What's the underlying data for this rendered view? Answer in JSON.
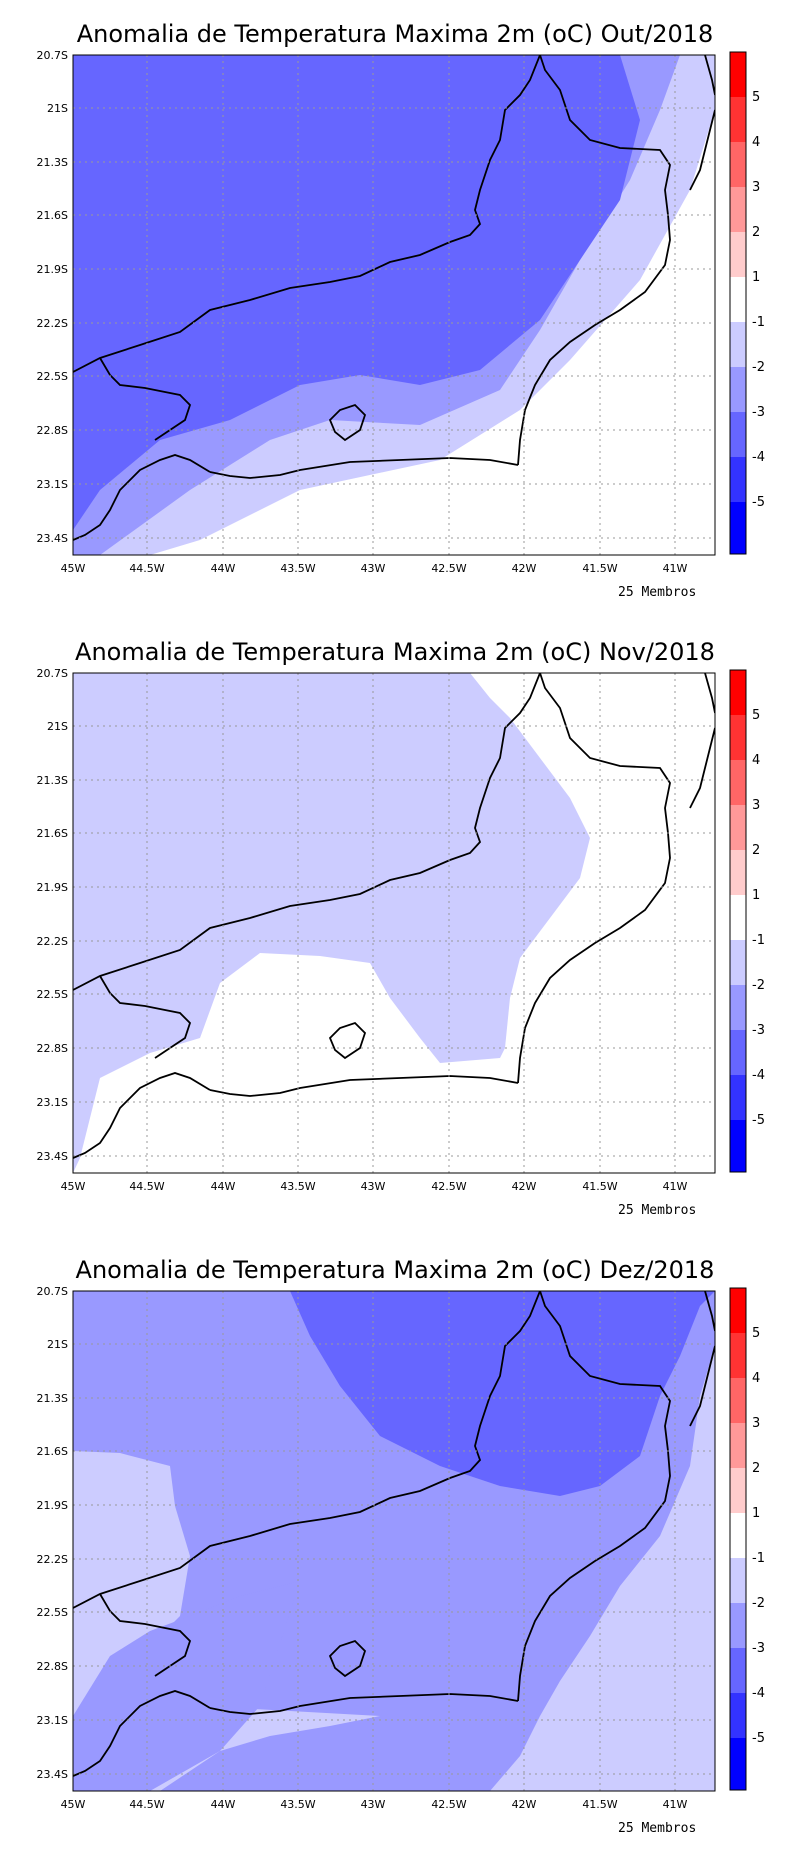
{
  "footer_label": "25 Membros",
  "colorbar": {
    "labels": [
      "5",
      "4",
      "3",
      "2",
      "1",
      "-1",
      "-2",
      "-3",
      "-4",
      "-5"
    ],
    "colors": [
      "#ff0000",
      "#ff3333",
      "#ff6666",
      "#ff9999",
      "#ffcccc",
      "#ffffff",
      "#ccccff",
      "#9999ff",
      "#6666ff",
      "#3333ff",
      "#0000ff"
    ]
  },
  "axes": {
    "x_ticks": [
      "45W",
      "44.5W",
      "44W",
      "43.5W",
      "43W",
      "42.5W",
      "42W",
      "41.5W",
      "41W"
    ],
    "y_ticks": [
      "20.7S",
      "21S",
      "21.3S",
      "21.6S",
      "21.9S",
      "22.2S",
      "22.5S",
      "22.8S",
      "23.1S",
      "23.4S"
    ]
  },
  "maps": [
    {
      "title": "Anomalia de Temperatura Maxima 2m (oC) Out/2018"
    },
    {
      "title": "Anomalia de Temperatura Maxima 2m (oC) Nov/2018"
    },
    {
      "title": "Anomalia de Temperatura Maxima 2m (oC) Dez/2018"
    }
  ]
}
